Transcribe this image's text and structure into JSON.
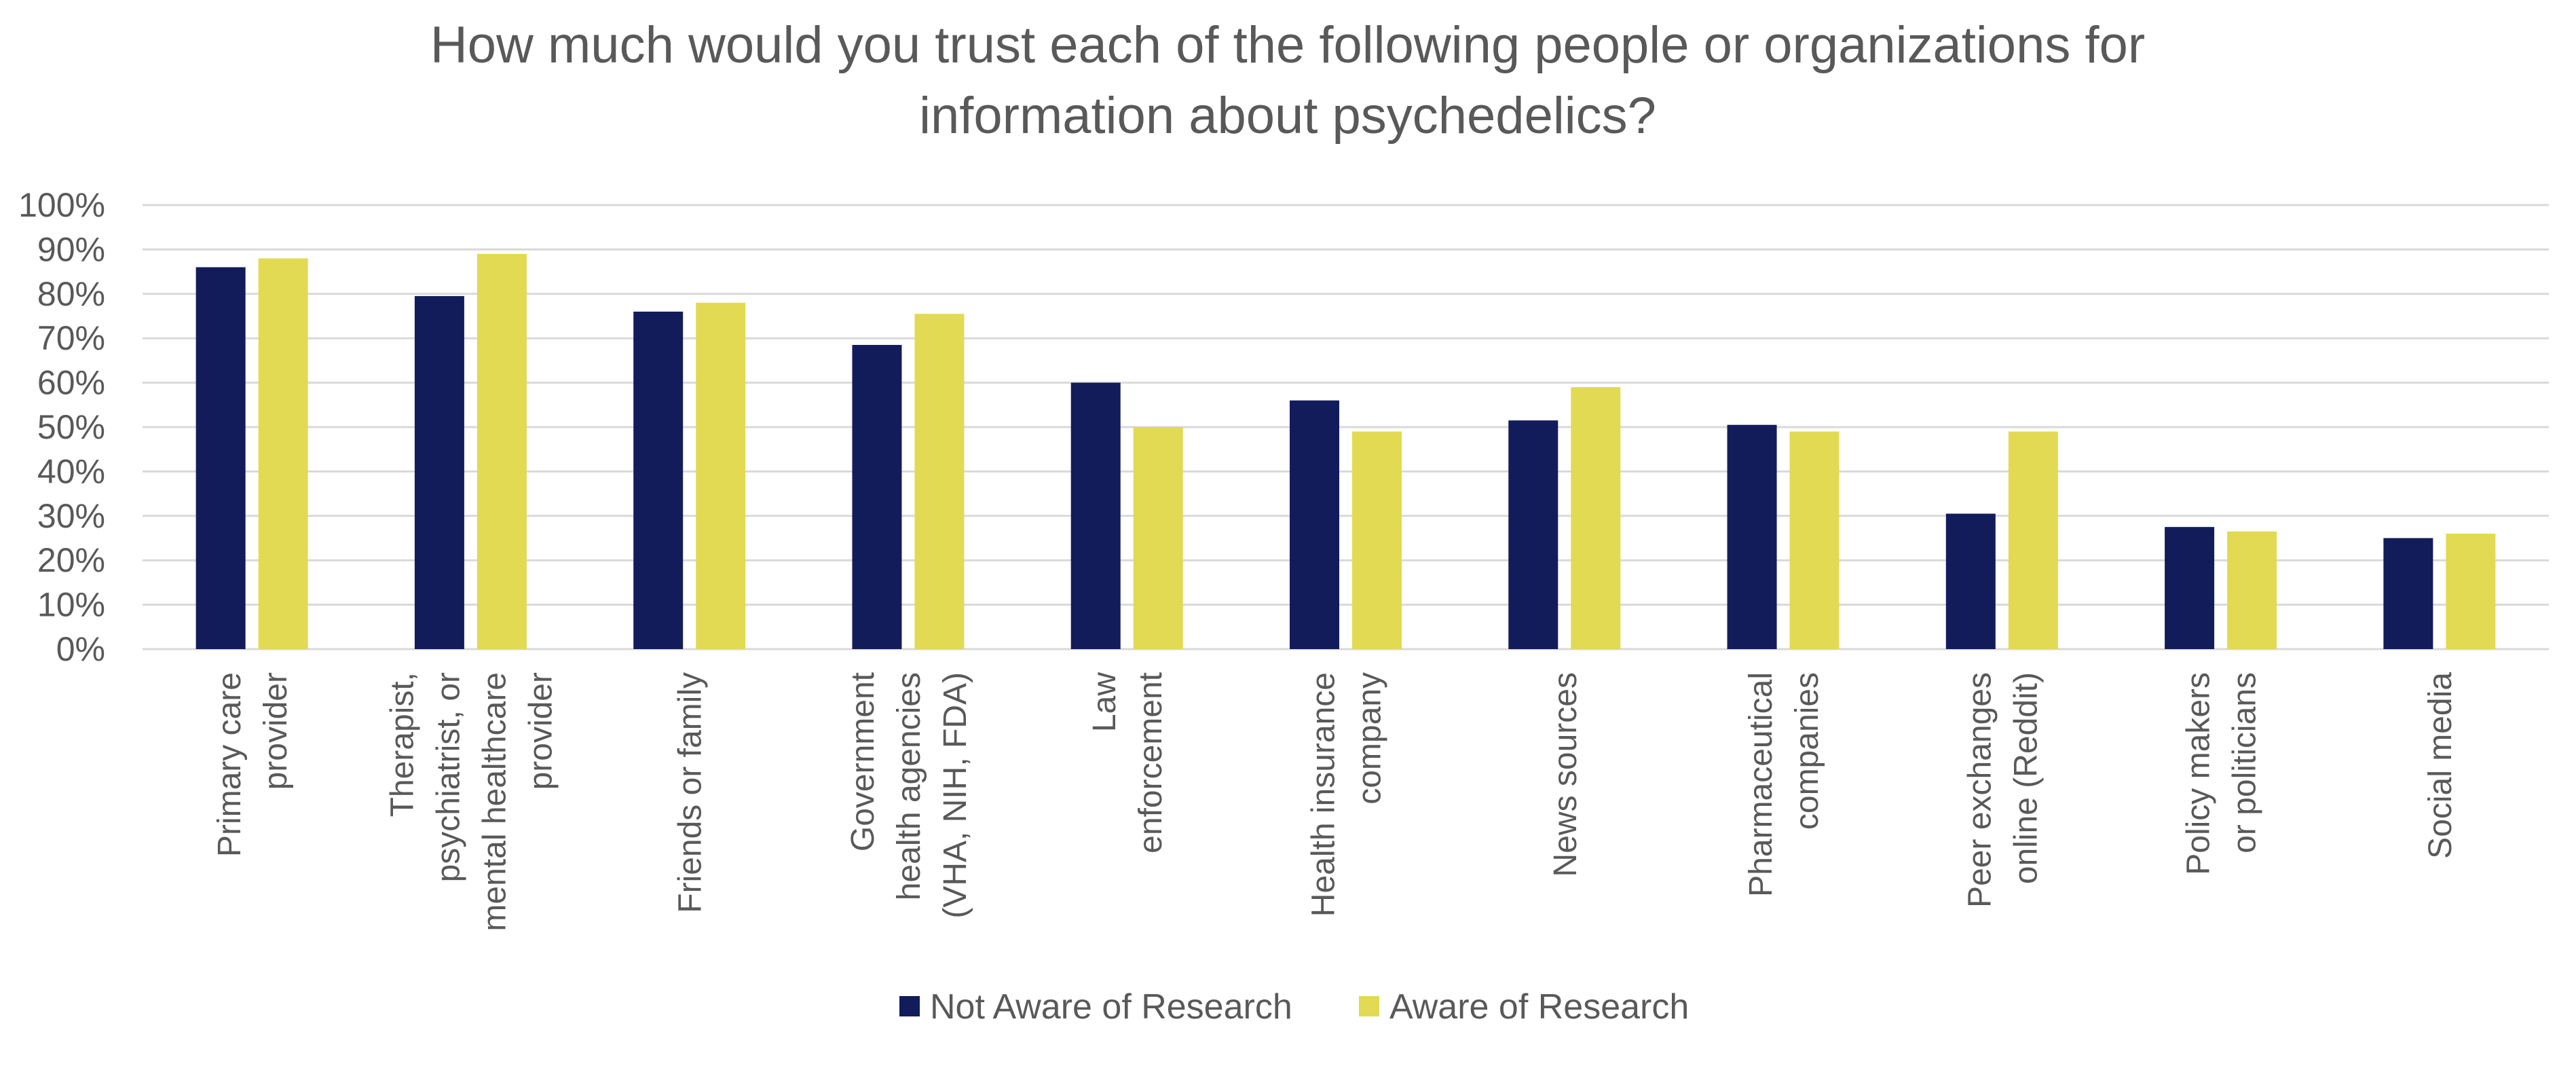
{
  "chart_data": {
    "type": "bar",
    "title": "How much would you trust each of the following people or organizations for information about psychedelics?",
    "title_lines": [
      "How much would you trust each of the following people or organizations for",
      "information about psychedelics?"
    ],
    "categories": [
      [
        "Primary care",
        "provider"
      ],
      [
        "Therapist,",
        "psychiatrist, or",
        "mental healthcare",
        "provider"
      ],
      [
        "Friends or family"
      ],
      [
        "Government",
        "health agencies",
        "(VHA, NIH, FDA)"
      ],
      [
        "Law",
        "enforcement"
      ],
      [
        "Health insurance",
        "company"
      ],
      [
        "News sources"
      ],
      [
        "Pharmaceutical",
        "companies"
      ],
      [
        "Peer exchanges",
        "online (Reddit)"
      ],
      [
        "Policy makers",
        "or politicians"
      ],
      [
        "Social media"
      ]
    ],
    "series": [
      {
        "name": "Not Aware of Research",
        "color": "#131c5b",
        "values": [
          86,
          79.5,
          76,
          68.5,
          60,
          56,
          51.5,
          50.5,
          30.5,
          27.5,
          25
        ]
      },
      {
        "name": "Aware of Research",
        "color": "#e2da53",
        "values": [
          88,
          89,
          78,
          75.5,
          50,
          49,
          59,
          49,
          49,
          26.5,
          26
        ]
      }
    ],
    "ylim": [
      0,
      100
    ],
    "yticks": [
      "0%",
      "10%",
      "20%",
      "30%",
      "40%",
      "50%",
      "60%",
      "70%",
      "80%",
      "90%",
      "100%"
    ],
    "xlabel": "",
    "ylabel": "",
    "grid": true,
    "legend_position": "bottom"
  }
}
